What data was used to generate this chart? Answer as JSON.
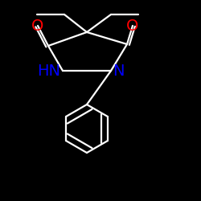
{
  "background_color": "#000000",
  "bond_color": "#ffffff",
  "atom_colors": {
    "O": "#ff0000",
    "N": "#0000ff",
    "C": "#ffffff"
  },
  "font_size_atoms": 14,
  "figsize": [
    2.5,
    2.5
  ],
  "dpi": 100,
  "lw": 1.6
}
